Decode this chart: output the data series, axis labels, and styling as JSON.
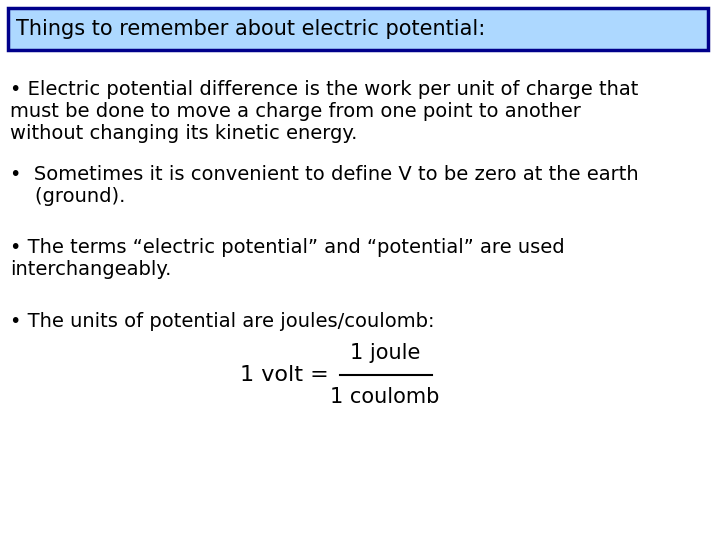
{
  "title": "Things to remember about electric potential:",
  "title_bg": "#add8ff",
  "title_border": "#00008B",
  "background": "#ffffff",
  "bullet1_line1": "• Electric potential difference is the work per unit of charge that",
  "bullet1_line2": "must be done to move a charge from one point to another",
  "bullet1_line3": "without changing its kinetic energy.",
  "bullet2_line1": "•  Sometimes it is convenient to define V to be zero at the earth",
  "bullet2_line2": "    (ground).",
  "bullet3_line1": "• The terms “electric potential” and “potential” are used",
  "bullet3_line2": "interchangeably.",
  "bullet4_line1": "• The units of potential are joules/coulomb:",
  "formula_left": "1 volt = ",
  "formula_num": "1 joule",
  "formula_den": "1 coulomb",
  "text_color": "#000000",
  "font_size": 14.0,
  "title_font_size": 15.0
}
